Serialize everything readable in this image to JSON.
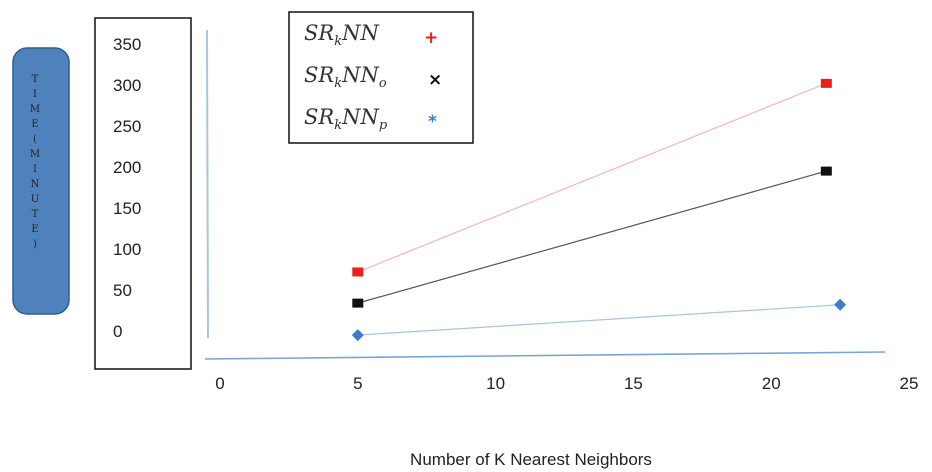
{
  "chart_data": {
    "type": "line",
    "ylabel_chars": [
      "T",
      "I",
      "M",
      "E",
      "(",
      "M",
      "I",
      "N",
      "U",
      "T",
      "E",
      ")"
    ],
    "xlabel": "Number of K Nearest Neighbors",
    "x_ticks": [
      "0",
      "5",
      "10",
      "15",
      "20",
      "25"
    ],
    "y_ticks": [
      "0",
      "50",
      "100",
      "150",
      "200",
      "250",
      "300",
      "350"
    ],
    "xlim": [
      0,
      25
    ],
    "ylim": [
      0,
      350
    ],
    "series": [
      {
        "name_main": "SR",
        "name_k": "k",
        "name_rest": "NN",
        "name_sub": "",
        "marker_symbol": "+",
        "color": "#e8221b",
        "line_color": "#f2b6b3",
        "marker": "square",
        "x": [
          5,
          22
        ],
        "y": [
          72,
          302
        ]
      },
      {
        "name_main": "SR",
        "name_k": "k",
        "name_rest": "NN",
        "name_sub": "o",
        "marker_symbol": "×",
        "color": "#111111",
        "line_color": "#555555",
        "marker": "square",
        "x": [
          5,
          22
        ],
        "y": [
          34,
          195
        ]
      },
      {
        "name_main": "SR",
        "name_k": "k",
        "name_rest": "NN",
        "name_sub": "p",
        "marker_symbol": "*",
        "color": "#3d7cc8",
        "line_color": "#a9c4e4",
        "marker": "diamond",
        "x": [
          5,
          22.5
        ],
        "y": [
          -5,
          32
        ]
      }
    ],
    "legend_position": "top-left"
  }
}
